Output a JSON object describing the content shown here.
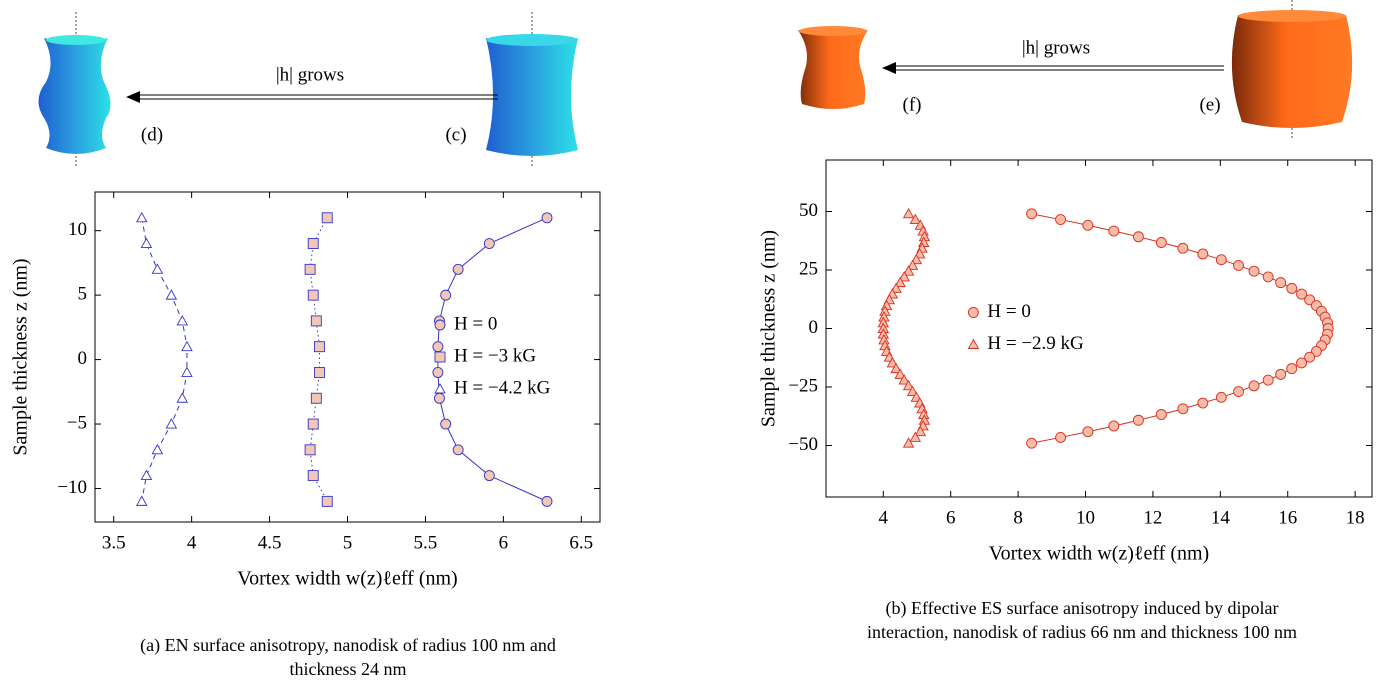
{
  "illustrations": [
    {
      "arrow_label": "|h| grows",
      "left_label": "(d)",
      "right_label": "(c)"
    },
    {
      "arrow_label": "|h| grows",
      "left_label": "(f)",
      "right_label": "(e)"
    }
  ],
  "chart_data": [
    {
      "type": "scatter",
      "caption": "(a) EN surface anisotropy, nanodisk of radius 100 nm and thickness 24 nm",
      "x_label": "Vortex width w(z)ℓeff (nm)",
      "y_label": "Sample thickness z (nm)",
      "xlim": [
        3.38,
        6.62
      ],
      "ylim": [
        -12.6,
        13
      ],
      "xticks": [
        3.5,
        4,
        4.5,
        5,
        5.5,
        6,
        6.5
      ],
      "yticks": [
        {
          "value": -10,
          "label": "−10"
        },
        {
          "value": -5,
          "label": "−5"
        },
        0,
        5,
        10
      ],
      "legend": "east",
      "series": [
        {
          "name": "H = 0",
          "color": "#3333cc",
          "fill": "#f2c8b4",
          "marker": "circle",
          "line": "solid",
          "x": [
            6.28,
            5.91,
            5.71,
            5.63,
            5.59,
            5.58,
            5.58,
            5.59,
            5.63,
            5.71,
            5.91,
            6.28
          ],
          "values": [
            11,
            9,
            7,
            5,
            3,
            1,
            -1,
            -3,
            -5,
            -7,
            -9,
            -11
          ]
        },
        {
          "name": "H = −3 kG",
          "color": "#3333cc",
          "fill": "#f2c8b4",
          "marker": "square",
          "line": "dotted",
          "x": [
            4.87,
            4.78,
            4.76,
            4.78,
            4.8,
            4.82,
            4.82,
            4.8,
            4.78,
            4.76,
            4.78,
            4.87
          ],
          "values": [
            11,
            9,
            7,
            5,
            3,
            1,
            -1,
            -3,
            -5,
            -7,
            -9,
            -11
          ]
        },
        {
          "name": "H = −4.2 kG",
          "color": "#3333cc",
          "fill": "#ffffff",
          "marker": "triangle",
          "line": "dashed",
          "x": [
            3.68,
            3.71,
            3.78,
            3.87,
            3.94,
            3.97,
            3.97,
            3.94,
            3.87,
            3.78,
            3.71,
            3.68
          ],
          "values": [
            11,
            9,
            7,
            5,
            3,
            1,
            -1,
            -3,
            -5,
            -7,
            -9,
            -11
          ]
        }
      ]
    },
    {
      "type": "scatter",
      "caption": "(b) Effective ES surface anisotropy induced by dipolar interaction, nanodisk of radius 66 nm and thickness 100 nm",
      "x_label": "Vortex width w(z)ℓeff (nm)",
      "y_label": "Sample thickness z (nm)",
      "xlim": [
        2.3,
        18.5
      ],
      "ylim": [
        -72,
        72
      ],
      "xticks": [
        4,
        6,
        8,
        10,
        12,
        14,
        16,
        18
      ],
      "yticks": [
        {
          "value": -50,
          "label": "−50"
        },
        {
          "value": -25,
          "label": "−25"
        },
        0,
        25,
        50
      ],
      "legend": "center",
      "series": [
        {
          "name": "H = 0",
          "color": "#d7301f",
          "fill": "#f7bba8",
          "marker": "circle",
          "line": "solid",
          "x": [
            8.4,
            9.26,
            10.07,
            10.84,
            11.57,
            12.25,
            12.89,
            13.48,
            14.03,
            14.54,
            15.0,
            15.42,
            15.79,
            16.12,
            16.41,
            16.65,
            16.85,
            17.0,
            17.11,
            17.18,
            17.2,
            17.18,
            17.11,
            17.0,
            16.85,
            16.65,
            16.41,
            16.12,
            15.79,
            15.42,
            15.0,
            14.54,
            14.03,
            13.48,
            12.89,
            12.25,
            11.57,
            10.84,
            10.07,
            9.26,
            8.4
          ],
          "values": [
            49,
            46.55,
            44.1,
            41.65,
            39.2,
            36.75,
            34.3,
            31.85,
            29.4,
            26.95,
            24.5,
            22.05,
            19.6,
            17.15,
            14.7,
            12.25,
            9.8,
            7.35,
            4.9,
            2.45,
            0,
            -2.45,
            -4.9,
            -7.35,
            -9.8,
            -12.25,
            -14.7,
            -17.15,
            -19.6,
            -22.05,
            -24.5,
            -26.95,
            -29.4,
            -31.85,
            -34.3,
            -36.75,
            -39.2,
            -41.65,
            -44.1,
            -46.55,
            -49
          ]
        },
        {
          "name": "H = −2.9 kG",
          "color": "#d7301f",
          "fill": "#f7bba8",
          "marker": "triangle",
          "line": "solid",
          "x": [
            4.75,
            4.95,
            5.1,
            5.18,
            5.22,
            5.2,
            5.15,
            5.08,
            4.98,
            4.87,
            4.75,
            4.62,
            4.5,
            4.38,
            4.27,
            4.18,
            4.1,
            4.05,
            4.02,
            4.0,
            4.0,
            4.0,
            4.02,
            4.05,
            4.1,
            4.18,
            4.27,
            4.38,
            4.5,
            4.62,
            4.75,
            4.87,
            4.98,
            5.08,
            5.15,
            5.2,
            5.22,
            5.18,
            5.1,
            4.95,
            4.75
          ],
          "values": [
            49,
            46.55,
            44.1,
            41.65,
            39.2,
            36.75,
            34.3,
            31.85,
            29.4,
            26.95,
            24.5,
            22.05,
            19.6,
            17.15,
            14.7,
            12.25,
            9.8,
            7.35,
            4.9,
            2.45,
            0,
            -2.45,
            -4.9,
            -7.35,
            -9.8,
            -12.25,
            -14.7,
            -17.15,
            -19.6,
            -22.05,
            -24.5,
            -26.95,
            -29.4,
            -31.85,
            -34.3,
            -36.75,
            -39.2,
            -41.65,
            -44.1,
            -46.55,
            -49
          ]
        }
      ]
    }
  ]
}
